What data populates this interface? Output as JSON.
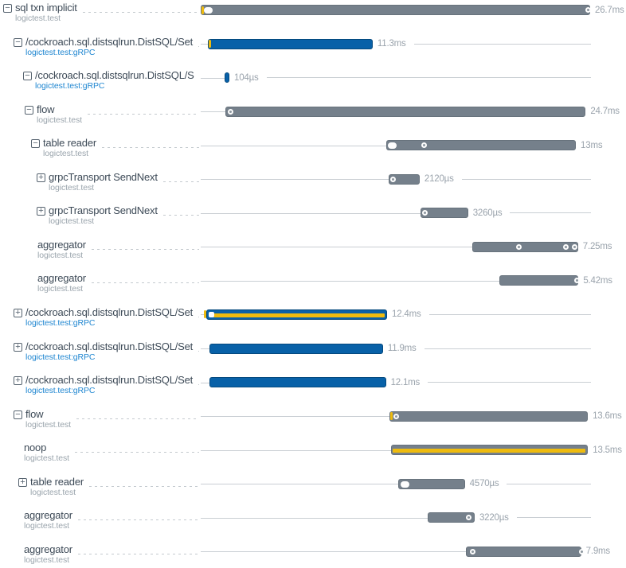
{
  "chart_data": {
    "type": "trace_waterfall_gantt",
    "title": "",
    "total_duration_ms": 26.7,
    "colors": {
      "bar_gray": "#75808b",
      "bar_blue": "#0861a8",
      "stripe_yellow": "#eebb0e",
      "service_link_blue": "#2187d1",
      "span_name_text": "#3d4a57",
      "secondary_text": "#9ba5ad",
      "duration_text": "#9aa3ac",
      "timeline_line": "#c9ced3"
    },
    "expander_glyphs": {
      "collapse": "−",
      "expand": "+"
    },
    "spans": [
      {
        "name": "sql txn implicit",
        "service": "logictest.test",
        "service_style": "plain",
        "expander": "collapse",
        "indent": 4,
        "start_ms": 0.0,
        "duration_ms": 26.7,
        "duration_label": "26.7ms",
        "bar": "gray",
        "stripe": false,
        "markers": [
          {
            "type": "tick",
            "at_ms": 0.05
          },
          {
            "type": "pill",
            "at_ms": 0.22
          },
          {
            "type": "dot",
            "at_ms": 26.35
          }
        ]
      },
      {
        "name": "/cockroach.sql.distsqlrun.DistSQL/Set",
        "service": "logictest.test:gRPC",
        "service_style": "blue",
        "expander": "collapse",
        "indent": 17,
        "start_ms": 0.49,
        "duration_ms": 11.3,
        "duration_label": "11.3ms",
        "bar": "blue",
        "stripe": false,
        "markers": [
          {
            "type": "tick",
            "at_ms": 0.52
          }
        ]
      },
      {
        "name": "/cockroach.sql.distsqlrun.DistSQL/S",
        "service": "logictest.test:gRPC",
        "service_style": "blue",
        "expander": "collapse",
        "indent": 29,
        "start_ms": 1.64,
        "duration_ms": 0.104,
        "duration_label": "104µs",
        "bar": "blue",
        "stripe": false,
        "markers": []
      },
      {
        "name": "flow",
        "service": "logictest.test",
        "service_style": "plain",
        "expander": "collapse",
        "indent": 31,
        "start_ms": 1.69,
        "duration_ms": 24.7,
        "duration_label": "24.7ms",
        "bar": "gray",
        "stripe": false,
        "markers": [
          {
            "type": "dot",
            "at_ms": 1.83
          }
        ]
      },
      {
        "name": "table reader",
        "service": "logictest.test",
        "service_style": "plain",
        "expander": "collapse",
        "indent": 39,
        "start_ms": 12.72,
        "duration_ms": 13.0,
        "duration_label": "13ms",
        "bar": "gray",
        "stripe": false,
        "markers": [
          {
            "type": "pill",
            "at_ms": 12.85
          },
          {
            "type": "dot",
            "at_ms": 15.1
          }
        ]
      },
      {
        "name": "grpcTransport SendNext",
        "service": "logictest.test",
        "service_style": "plain",
        "expander": "expand",
        "indent": 46,
        "start_ms": 12.89,
        "duration_ms": 2.12,
        "duration_label": "2120µs",
        "bar": "gray",
        "stripe": false,
        "markers": [
          {
            "type": "dot",
            "at_ms": 13.0
          }
        ]
      },
      {
        "name": "grpcTransport SendNext",
        "service": "logictest.test",
        "service_style": "plain",
        "expander": "expand",
        "indent": 46,
        "start_ms": 15.07,
        "duration_ms": 3.26,
        "duration_label": "3260µs",
        "bar": "gray",
        "stripe": false,
        "markers": [
          {
            "type": "dot",
            "at_ms": 15.2
          }
        ]
      },
      {
        "name": "aggregator",
        "service": "logictest.test",
        "service_style": "plain",
        "expander": "none",
        "indent": 47,
        "start_ms": 18.62,
        "duration_ms": 7.25,
        "duration_label": "7.25ms",
        "bar": "gray",
        "stripe": false,
        "markers": [
          {
            "type": "dot",
            "at_ms": 21.6
          },
          {
            "type": "dot",
            "at_ms": 24.85
          },
          {
            "type": "dot",
            "at_ms": 25.45
          }
        ]
      },
      {
        "name": "aggregator",
        "service": "logictest.test",
        "service_style": "plain",
        "expander": "none",
        "indent": 47,
        "start_ms": 20.48,
        "duration_ms": 5.42,
        "duration_label": "5.42ms",
        "bar": "gray",
        "stripe": false,
        "markers": [
          {
            "type": "dot",
            "at_ms": 25.6
          }
        ]
      },
      {
        "name": "/cockroach.sql.distsqlrun.DistSQL/Set",
        "service": "logictest.test:gRPC",
        "service_style": "blue",
        "expander": "expand",
        "indent": 17,
        "start_ms": 0.38,
        "duration_ms": 12.4,
        "duration_label": "12.4ms",
        "bar": "blue",
        "stripe": true,
        "markers": [
          {
            "type": "tick",
            "at_ms": 0.2
          },
          {
            "type": "sq",
            "at_ms": 0.52
          }
        ]
      },
      {
        "name": "/cockroach.sql.distsqlrun.DistSQL/Set",
        "service": "logictest.test:gRPC",
        "service_style": "blue",
        "expander": "expand",
        "indent": 17,
        "start_ms": 0.6,
        "duration_ms": 11.9,
        "duration_label": "11.9ms",
        "bar": "blue",
        "stripe": false,
        "markers": []
      },
      {
        "name": "/cockroach.sql.distsqlrun.DistSQL/Set",
        "service": "logictest.test:gRPC",
        "service_style": "blue",
        "expander": "expand",
        "indent": 17,
        "start_ms": 0.6,
        "duration_ms": 12.1,
        "duration_label": "12.1ms",
        "bar": "blue",
        "stripe": false,
        "markers": []
      },
      {
        "name": "flow",
        "service": "logictest.test",
        "service_style": "plain",
        "expander": "collapse",
        "indent": 17,
        "start_ms": 12.94,
        "duration_ms": 13.6,
        "duration_label": "13.6ms",
        "bar": "gray",
        "stripe": false,
        "markers": [
          {
            "type": "tick",
            "at_ms": 13.0
          },
          {
            "type": "dot",
            "at_ms": 13.2
          }
        ]
      },
      {
        "name": "noop",
        "service": "logictest.test",
        "service_style": "plain",
        "expander": "none",
        "indent": 30,
        "start_ms": 13.05,
        "duration_ms": 13.5,
        "duration_label": "13.5ms",
        "bar": "gray",
        "stripe": true,
        "markers": []
      },
      {
        "name": "table reader",
        "service": "logictest.test",
        "service_style": "plain",
        "expander": "expand",
        "indent": 23,
        "start_ms": 13.54,
        "duration_ms": 4.57,
        "duration_label": "4570µs",
        "bar": "gray",
        "stripe": false,
        "markers": [
          {
            "type": "pill",
            "at_ms": 13.7
          }
        ]
      },
      {
        "name": "aggregator",
        "service": "logictest.test",
        "service_style": "plain",
        "expander": "none",
        "indent": 30,
        "start_ms": 15.56,
        "duration_ms": 3.22,
        "duration_label": "3220µs",
        "bar": "gray",
        "stripe": false,
        "markers": [
          {
            "type": "dot",
            "at_ms": 18.2
          }
        ]
      },
      {
        "name": "aggregator",
        "service": "logictest.test",
        "service_style": "plain",
        "expander": "none",
        "indent": 30,
        "start_ms": 18.18,
        "duration_ms": 7.9,
        "duration_label": "7.9ms",
        "bar": "gray",
        "stripe": false,
        "markers": [
          {
            "type": "dot",
            "at_ms": 18.45
          },
          {
            "type": "dot",
            "at_ms": 25.95
          }
        ]
      }
    ]
  }
}
